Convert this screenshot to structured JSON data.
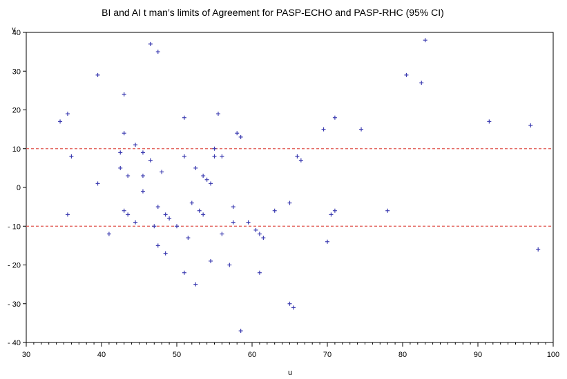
{
  "chart_data": {
    "type": "scatter",
    "title": "BI and AI t man’s limits of Agreement for PASP-ECHO and PASP-RHC (95% CI)",
    "xlabel": "u",
    "ylabel": "v",
    "xlim": [
      30,
      100
    ],
    "ylim": [
      -40,
      40
    ],
    "xticks": [
      30,
      40,
      50,
      60,
      70,
      80,
      90,
      100
    ],
    "yticks": [
      40,
      30,
      20,
      10,
      0,
      -10,
      -20,
      -30,
      -40
    ],
    "grid": false,
    "marker_color": "#3b3bb0",
    "reference_lines": [
      {
        "y": 10,
        "color": "#e0554f",
        "style": "dashed"
      },
      {
        "y": -10,
        "color": "#e0554f",
        "style": "dashed"
      }
    ],
    "points": [
      [
        34.5,
        17
      ],
      [
        35.5,
        19
      ],
      [
        35.5,
        -7
      ],
      [
        36,
        8
      ],
      [
        39.5,
        29
      ],
      [
        39.5,
        1
      ],
      [
        41,
        -12
      ],
      [
        42.5,
        9
      ],
      [
        42.5,
        5
      ],
      [
        43,
        24
      ],
      [
        43,
        14
      ],
      [
        43,
        -6
      ],
      [
        43.5,
        3
      ],
      [
        43.5,
        -7
      ],
      [
        44.5,
        11
      ],
      [
        44.5,
        -9
      ],
      [
        45.5,
        9
      ],
      [
        45.5,
        3
      ],
      [
        45.5,
        -1
      ],
      [
        46.5,
        37
      ],
      [
        46.5,
        7
      ],
      [
        47,
        -10
      ],
      [
        47.5,
        35
      ],
      [
        47.5,
        -5
      ],
      [
        47.5,
        -15
      ],
      [
        48,
        4
      ],
      [
        48.5,
        -7
      ],
      [
        48.5,
        -17
      ],
      [
        49,
        -8
      ],
      [
        50,
        -10
      ],
      [
        51,
        18
      ],
      [
        51,
        8
      ],
      [
        51,
        -22
      ],
      [
        51.5,
        -13
      ],
      [
        52,
        -4
      ],
      [
        52.5,
        5
      ],
      [
        52.5,
        -25
      ],
      [
        53,
        -6
      ],
      [
        53.5,
        3
      ],
      [
        53.5,
        -7
      ],
      [
        54,
        2
      ],
      [
        54.5,
        1
      ],
      [
        54.5,
        -19
      ],
      [
        55,
        10
      ],
      [
        55,
        8
      ],
      [
        55.5,
        19
      ],
      [
        56,
        8
      ],
      [
        56,
        -12
      ],
      [
        57,
        -20
      ],
      [
        57.5,
        -5
      ],
      [
        57.5,
        -9
      ],
      [
        58,
        14
      ],
      [
        58.5,
        13
      ],
      [
        58.5,
        -37
      ],
      [
        59.5,
        -9
      ],
      [
        60.5,
        -11
      ],
      [
        61,
        -12
      ],
      [
        61,
        -22
      ],
      [
        61.5,
        -13
      ],
      [
        63,
        -6
      ],
      [
        65,
        -4
      ],
      [
        65,
        -30
      ],
      [
        65.5,
        -31
      ],
      [
        66,
        8
      ],
      [
        66.5,
        7
      ],
      [
        69.5,
        15
      ],
      [
        70,
        -14
      ],
      [
        70.5,
        -7
      ],
      [
        71,
        18
      ],
      [
        71,
        -6
      ],
      [
        74.5,
        15
      ],
      [
        78,
        -6
      ],
      [
        80.5,
        29
      ],
      [
        82.5,
        27
      ],
      [
        83,
        38
      ],
      [
        91.5,
        17
      ],
      [
        97,
        16
      ],
      [
        98,
        -16
      ]
    ]
  }
}
